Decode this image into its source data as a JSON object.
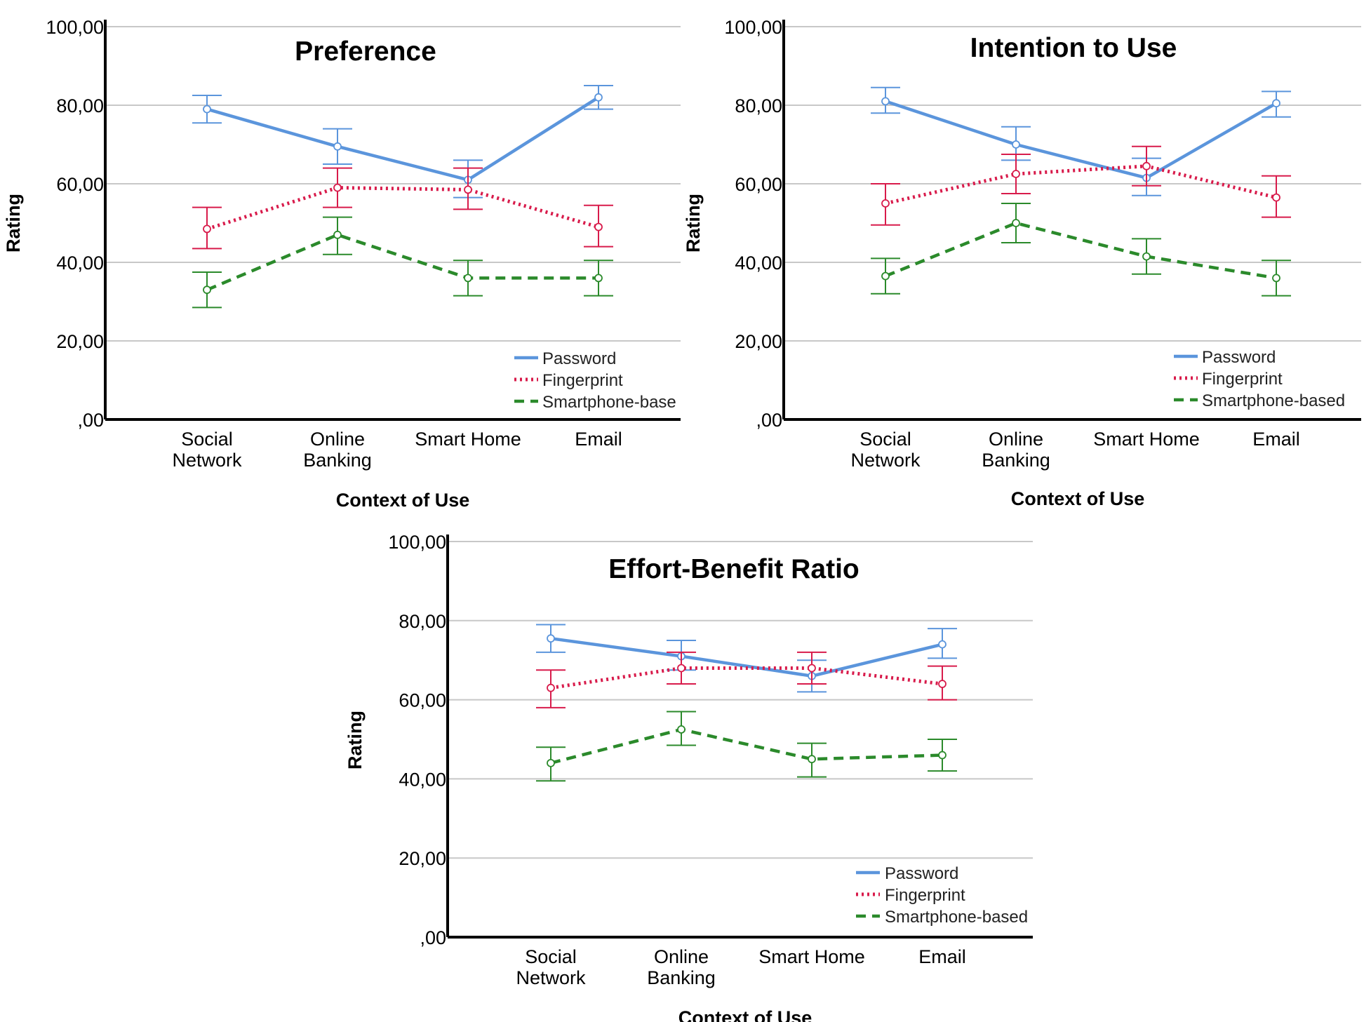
{
  "colors": {
    "password": "#5b95dc",
    "fingerprint": "#d81b4b",
    "smartphone": "#2b8a2b",
    "grid": "#c8c8c8",
    "axis": "#000000"
  },
  "chart_data": [
    {
      "type": "line",
      "title": "Preference",
      "xlabel": "Context of Use",
      "ylabel": "Rating",
      "ylim": [
        0,
        100
      ],
      "yticks": [
        "100,00",
        "80,00",
        "60,00",
        "40,00",
        "20,00",
        ",00"
      ],
      "categories": [
        [
          "Social",
          "Network"
        ],
        [
          "Online",
          "Banking"
        ],
        [
          "Smart Home"
        ],
        [
          "Email"
        ]
      ],
      "legend": [
        "Password",
        "Fingerprint",
        "Smartphone-base"
      ],
      "legend_position": "bottom-right",
      "series": [
        {
          "name": "Password",
          "values": [
            79,
            69.5,
            61,
            82
          ],
          "err_low": [
            75.5,
            65,
            56.5,
            79
          ],
          "err_high": [
            82.5,
            74,
            66,
            85
          ]
        },
        {
          "name": "Fingerprint",
          "values": [
            48.5,
            59,
            58.5,
            49
          ],
          "err_low": [
            43.5,
            54,
            53.5,
            44
          ],
          "err_high": [
            54,
            64,
            64,
            54.5
          ]
        },
        {
          "name": "Smartphone-base",
          "values": [
            33,
            47,
            36,
            36
          ],
          "err_low": [
            28.5,
            42,
            31.5,
            31.5
          ],
          "err_high": [
            37.5,
            51.5,
            40.5,
            40.5
          ]
        }
      ]
    },
    {
      "type": "line",
      "title": "Intention to Use",
      "xlabel": "Context of Use",
      "ylabel": "Rating",
      "ylim": [
        0,
        100
      ],
      "yticks": [
        "100,00",
        "80,00",
        "60,00",
        "40,00",
        "20,00",
        ",00"
      ],
      "categories": [
        [
          "Social",
          "Network"
        ],
        [
          "Online",
          "Banking"
        ],
        [
          "Smart Home"
        ],
        [
          "Email"
        ]
      ],
      "legend": [
        "Password",
        "Fingerprint",
        "Smartphone-based"
      ],
      "legend_position": "bottom-right",
      "series": [
        {
          "name": "Password",
          "values": [
            81,
            70,
            61.5,
            80.5
          ],
          "err_low": [
            78,
            66,
            57,
            77
          ],
          "err_high": [
            84.5,
            74.5,
            66.5,
            83.5
          ]
        },
        {
          "name": "Fingerprint",
          "values": [
            55,
            62.5,
            64.5,
            56.5
          ],
          "err_low": [
            49.5,
            57.5,
            59.5,
            51.5
          ],
          "err_high": [
            60,
            67.5,
            69.5,
            62
          ]
        },
        {
          "name": "Smartphone-based",
          "values": [
            36.5,
            50,
            41.5,
            36
          ],
          "err_low": [
            32,
            45,
            37,
            31.5
          ],
          "err_high": [
            41,
            55,
            46,
            40.5
          ]
        }
      ]
    },
    {
      "type": "line",
      "title": "Effort-Benefit Ratio",
      "xlabel": "Context of Use",
      "ylabel": "Rating",
      "ylim": [
        0,
        100
      ],
      "yticks": [
        "100,00",
        "80,00",
        "60,00",
        "40,00",
        "20,00",
        ",00"
      ],
      "categories": [
        [
          "Social",
          "Network"
        ],
        [
          "Online",
          "Banking"
        ],
        [
          "Smart Home"
        ],
        [
          "Email"
        ]
      ],
      "legend": [
        "Password",
        "Fingerprint",
        "Smartphone-based"
      ],
      "legend_position": "bottom-right",
      "series": [
        {
          "name": "Password",
          "values": [
            75.5,
            71,
            66,
            74
          ],
          "err_low": [
            72,
            67.5,
            62,
            70.5
          ],
          "err_high": [
            79,
            75,
            70,
            78
          ]
        },
        {
          "name": "Fingerprint",
          "values": [
            63,
            68,
            68,
            64
          ],
          "err_low": [
            58,
            64,
            64,
            60
          ],
          "err_high": [
            67.5,
            72,
            72,
            68.5
          ]
        },
        {
          "name": "Smartphone-based",
          "values": [
            44,
            52.5,
            45,
            46
          ],
          "err_low": [
            39.5,
            48.5,
            40.5,
            42
          ],
          "err_high": [
            48,
            57,
            49,
            50
          ]
        }
      ]
    }
  ]
}
